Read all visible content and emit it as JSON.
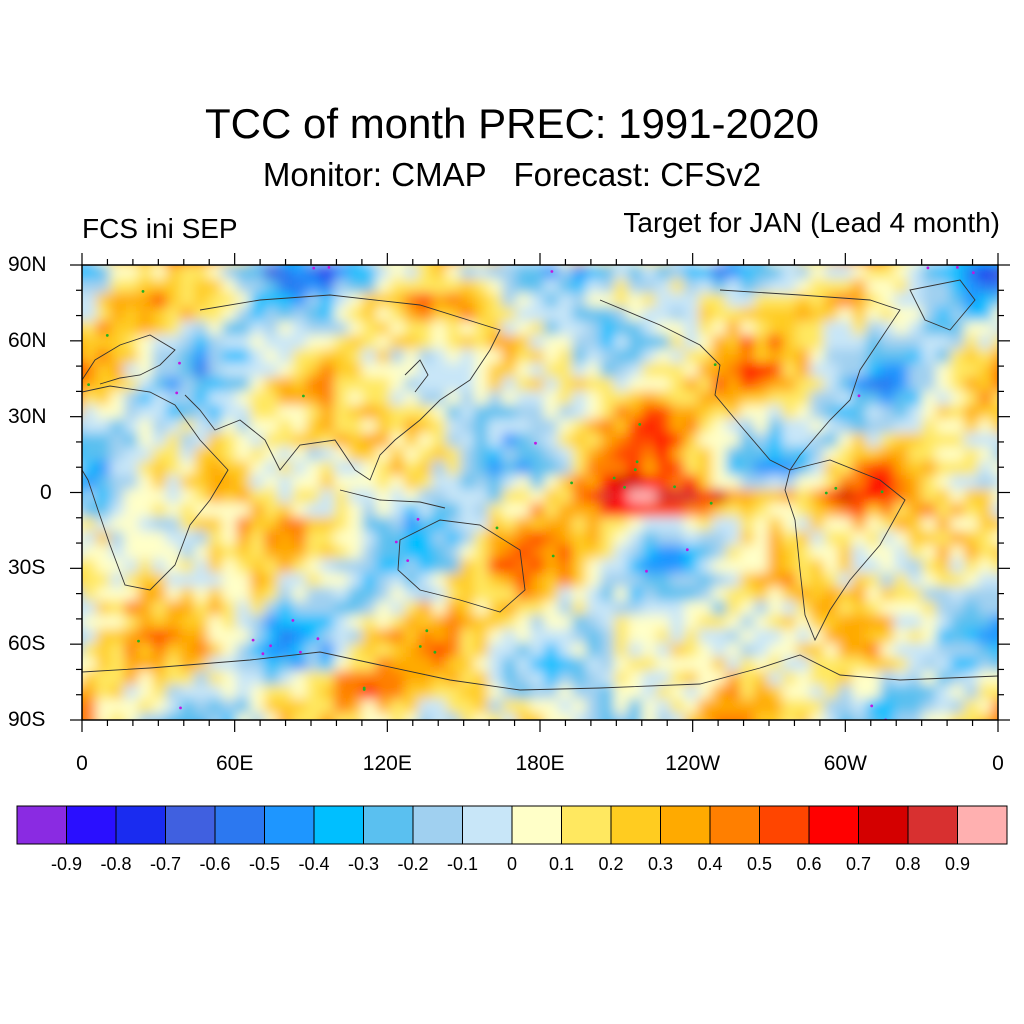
{
  "title": "TCC of month PREC: 1991-2020",
  "subtitle": "Monitor: CMAP   Forecast: CFSv2",
  "left_label": "FCS ini SEP",
  "right_label": "Target for JAN (Lead 4 month)",
  "map": {
    "lat_labels": [
      "90N",
      "60N",
      "30N",
      "0",
      "30S",
      "60S",
      "90S"
    ],
    "lat_values": [
      90,
      60,
      30,
      0,
      -30,
      -60,
      -90
    ],
    "lon_labels": [
      "0",
      "60E",
      "120E",
      "180E",
      "120W",
      "60W",
      "0"
    ],
    "lon_values": [
      0,
      60,
      120,
      180,
      240,
      300,
      360
    ],
    "significance_dot_colors": [
      "#22b022",
      "#c018e0"
    ]
  },
  "colorbar": {
    "labels": [
      "-0.9",
      "-0.8",
      "-0.7",
      "-0.6",
      "-0.5",
      "-0.4",
      "-0.3",
      "-0.2",
      "-0.1",
      "0",
      "0.1",
      "0.2",
      "0.3",
      "0.4",
      "0.5",
      "0.6",
      "0.7",
      "0.8",
      "0.9"
    ],
    "colors": [
      "#8a2be2",
      "#2a0fff",
      "#1a2cf0",
      "#4060e0",
      "#2c78f0",
      "#1e96ff",
      "#00bfff",
      "#5ac0f0",
      "#a0d0f0",
      "#c8e6f8",
      "#ffffc8",
      "#ffe860",
      "#ffcc20",
      "#ffaa00",
      "#ff7f00",
      "#ff4500",
      "#ff0000",
      "#d40000",
      "#d83030",
      "#ffb0b0"
    ]
  }
}
